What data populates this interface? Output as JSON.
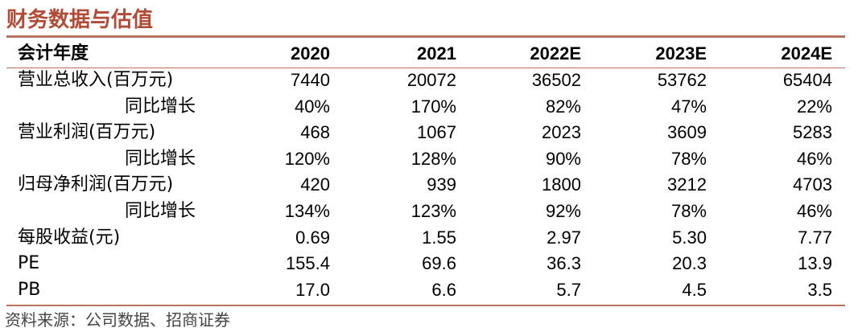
{
  "header": {
    "title": "财务数据与估值"
  },
  "table": {
    "columns": [
      "会计年度",
      "2020",
      "2021",
      "2022E",
      "2023E",
      "2024E"
    ],
    "rows": [
      [
        "营业总收入(百万元)",
        "7440",
        "20072",
        "36502",
        "53762",
        "65404"
      ],
      [
        "同比增长",
        "40%",
        "170%",
        "82%",
        "47%",
        "22%"
      ],
      [
        "营业利润(百万元)",
        "468",
        "1067",
        "2023",
        "3609",
        "5283"
      ],
      [
        "同比增长",
        "120%",
        "128%",
        "90%",
        "78%",
        "46%"
      ],
      [
        "归母净利润(百万元)",
        "420",
        "939",
        "1800",
        "3212",
        "4703"
      ],
      [
        "同比增长",
        "134%",
        "123%",
        "92%",
        "78%",
        "46%"
      ],
      [
        "每股收益(元)",
        "0.69",
        "1.55",
        "2.97",
        "5.30",
        "7.77"
      ],
      [
        "PE",
        "155.4",
        "69.6",
        "36.3",
        "20.3",
        "13.9"
      ],
      [
        "PB",
        "17.0",
        "6.6",
        "5.7",
        "4.5",
        "3.5"
      ]
    ]
  },
  "source": "资料来源：公司数据、招商证券"
}
